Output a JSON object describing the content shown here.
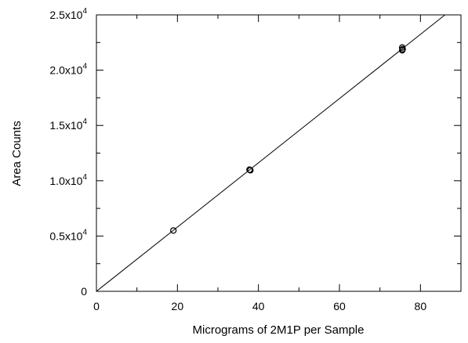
{
  "chart_data": {
    "type": "scatter",
    "title": "",
    "xlabel": "Micrograms of 2M1P per Sample",
    "ylabel": "Area Counts",
    "xlim": [
      0,
      90
    ],
    "ylim": [
      0,
      25000
    ],
    "x_ticks": [
      {
        "value": 0,
        "label": "0"
      },
      {
        "value": 20,
        "label": "20"
      },
      {
        "value": 40,
        "label": "40"
      },
      {
        "value": 60,
        "label": "60"
      },
      {
        "value": 80,
        "label": "80"
      }
    ],
    "x_minor_step": 10,
    "y_ticks": [
      {
        "value": 0,
        "mantissa": "0",
        "exponent": ""
      },
      {
        "value": 5000,
        "mantissa": "0.5x10",
        "exponent": "4"
      },
      {
        "value": 10000,
        "mantissa": "1.0x10",
        "exponent": "4"
      },
      {
        "value": 15000,
        "mantissa": "1.5x10",
        "exponent": "4"
      },
      {
        "value": 20000,
        "mantissa": "2.0x10",
        "exponent": "4"
      },
      {
        "value": 25000,
        "mantissa": "2.5x10",
        "exponent": "4"
      }
    ],
    "y_minor_step": 2500,
    "grid": false,
    "series": [
      {
        "marker": "open-circle",
        "points": [
          {
            "x": 19.0,
            "y": 5500
          },
          {
            "x": 37.8,
            "y": 11000
          },
          {
            "x": 38.0,
            "y": 10950
          },
          {
            "x": 75.5,
            "y": 22050
          },
          {
            "x": 75.6,
            "y": 21900
          },
          {
            "x": 75.5,
            "y": 21800
          }
        ]
      }
    ],
    "fit_line": {
      "slope": 290.5,
      "intercept": 0
    }
  }
}
